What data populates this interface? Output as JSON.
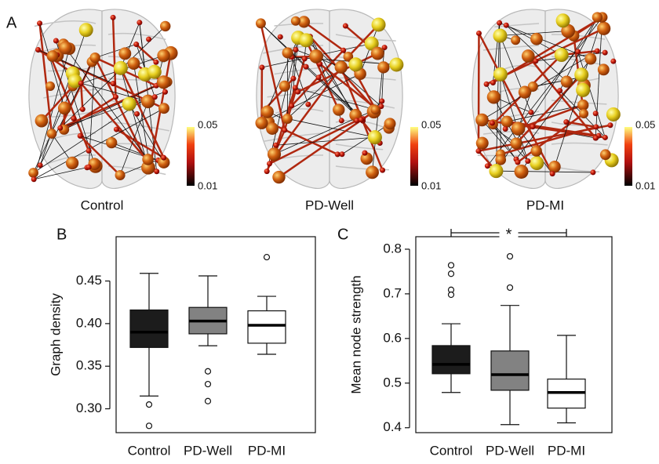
{
  "panel_labels": [
    "A",
    "B",
    "C"
  ],
  "brains": [
    {
      "label": "Control",
      "colorbar": [
        0.05,
        0.01
      ]
    },
    {
      "label": "PD-Well",
      "colorbar": [
        0.05,
        0.01
      ]
    },
    {
      "label": "PD-MI",
      "colorbar": [
        0.05,
        0.01
      ]
    }
  ],
  "chart_data": [
    {
      "type": "box",
      "y_label": "Graph density",
      "categories": [
        "Control",
        "PD-Well",
        "PD-MI"
      ],
      "colors": [
        "#1c1c1c",
        "#828282",
        "#ffffff"
      ],
      "boxes": [
        {
          "whisker_low": 0.315,
          "q1": 0.372,
          "median": 0.39,
          "q3": 0.416,
          "whisker_high": 0.459,
          "outliers": [
            0.305,
            0.28
          ]
        },
        {
          "whisker_low": 0.374,
          "q1": 0.388,
          "median": 0.403,
          "q3": 0.419,
          "whisker_high": 0.456,
          "outliers": [
            0.344,
            0.329,
            0.309
          ]
        },
        {
          "whisker_low": 0.364,
          "q1": 0.377,
          "median": 0.398,
          "q3": 0.415,
          "whisker_high": 0.432,
          "outliers": [
            0.478
          ]
        }
      ],
      "ylim": [
        0.272,
        0.502
      ],
      "yticks": [
        {
          "value": 0.3,
          "label": "0.30"
        },
        {
          "value": 0.35,
          "label": "0.35"
        },
        {
          "value": 0.4,
          "label": "0.40"
        },
        {
          "value": 0.45,
          "label": "0.45"
        }
      ]
    },
    {
      "type": "box",
      "y_label": "Mean node strength",
      "annotation": "*",
      "categories": [
        "Control",
        "PD-Well",
        "PD-MI"
      ],
      "colors": [
        "#1c1c1c",
        "#828282",
        "#ffffff"
      ],
      "boxes": [
        {
          "whisker_low": 0.479,
          "q1": 0.521,
          "median": 0.542,
          "q3": 0.584,
          "whisker_high": 0.633,
          "outliers": [
            0.764,
            0.745,
            0.709,
            0.698
          ]
        },
        {
          "whisker_low": 0.407,
          "q1": 0.484,
          "median": 0.519,
          "q3": 0.572,
          "whisker_high": 0.674,
          "outliers": [
            0.784,
            0.714
          ]
        },
        {
          "whisker_low": 0.411,
          "q1": 0.444,
          "median": 0.479,
          "q3": 0.509,
          "whisker_high": 0.607,
          "outliers": []
        }
      ],
      "ylim": [
        0.389,
        0.828
      ],
      "yticks": [
        0.4,
        0.5,
        0.6,
        0.7,
        0.8
      ]
    }
  ]
}
